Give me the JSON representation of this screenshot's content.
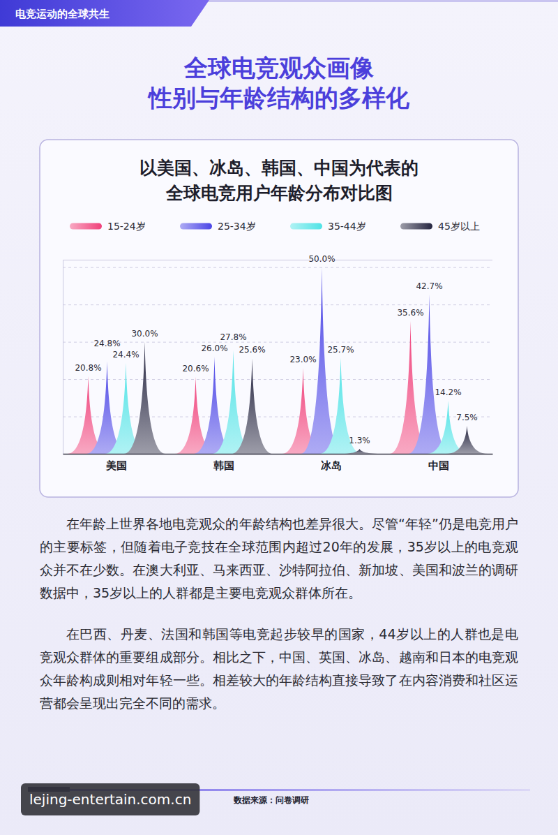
{
  "header": {
    "tag": "电竞运动的全球共生",
    "title": [
      "全球电竞观众画像",
      "性别与年龄结构的多样化"
    ]
  },
  "chart_data": {
    "type": "bar",
    "title": "以美国、冰岛、韩国、中国为代表的",
    "subtitle": "全球电竞用户年龄分布对比图",
    "categories": [
      "美国",
      "韩国",
      "冰岛",
      "中国"
    ],
    "series": [
      {
        "name": "15-24岁",
        "color": "#f0407a",
        "values": [
          20.8,
          20.6,
          23.0,
          35.6
        ],
        "value_labels": [
          "20.8%",
          "20.6%",
          "23.0%",
          "35.6%"
        ]
      },
      {
        "name": "25-34岁",
        "color": "#4b45e6",
        "values": [
          24.8,
          26.0,
          50.0,
          42.7
        ],
        "value_labels": [
          "24.8%",
          "26.0%",
          "50.0%",
          "42.7%"
        ]
      },
      {
        "name": "35-44岁",
        "color": "#4fe3e6",
        "values": [
          24.4,
          27.8,
          25.7,
          14.2
        ],
        "value_labels": [
          "24.4%",
          "27.8%",
          "25.7%",
          "14.2%"
        ]
      },
      {
        "name": "45岁以上",
        "color": "#252540",
        "values": [
          30.0,
          25.6,
          1.3,
          7.5
        ],
        "value_labels": [
          "30.0%",
          "25.6%",
          "1.3%",
          "7.5%"
        ]
      }
    ],
    "ylim": [
      0,
      52
    ],
    "yticks": [
      0,
      10,
      20,
      30,
      40,
      50
    ],
    "grid": true,
    "legend": "top",
    "data_labels": true,
    "tick_labels": "x"
  },
  "paragraphs": [
    "在年龄上世界各地电竞观众的年龄结构也差异很大。尽管“年轻”仍是电竞用户的主要标签，但随着电子竞技在全球范围内超过20年的发展，35岁以上的电竞观众并不在少数。在澳大利亚、马来西亚、沙特阿拉伯、新加坡、美国和波兰的调研数据中，35岁以上的人群都是主要电竞观众群体所在。",
    "在巴西、丹麦、法国和韩国等电竞起步较早的国家，44岁以上的人群也是电竞观众群体的重要组成部分。相比之下，中国、英国、冰岛、越南和日本的电竞观众年龄构成则相对年轻一些。相差较大的年龄结构直接导致了在内容消费和社区运营都会呈现出完全不同的需求。"
  ],
  "source": "数据来源：问卷调研",
  "watermark": "lejing-entertain.com.cn"
}
